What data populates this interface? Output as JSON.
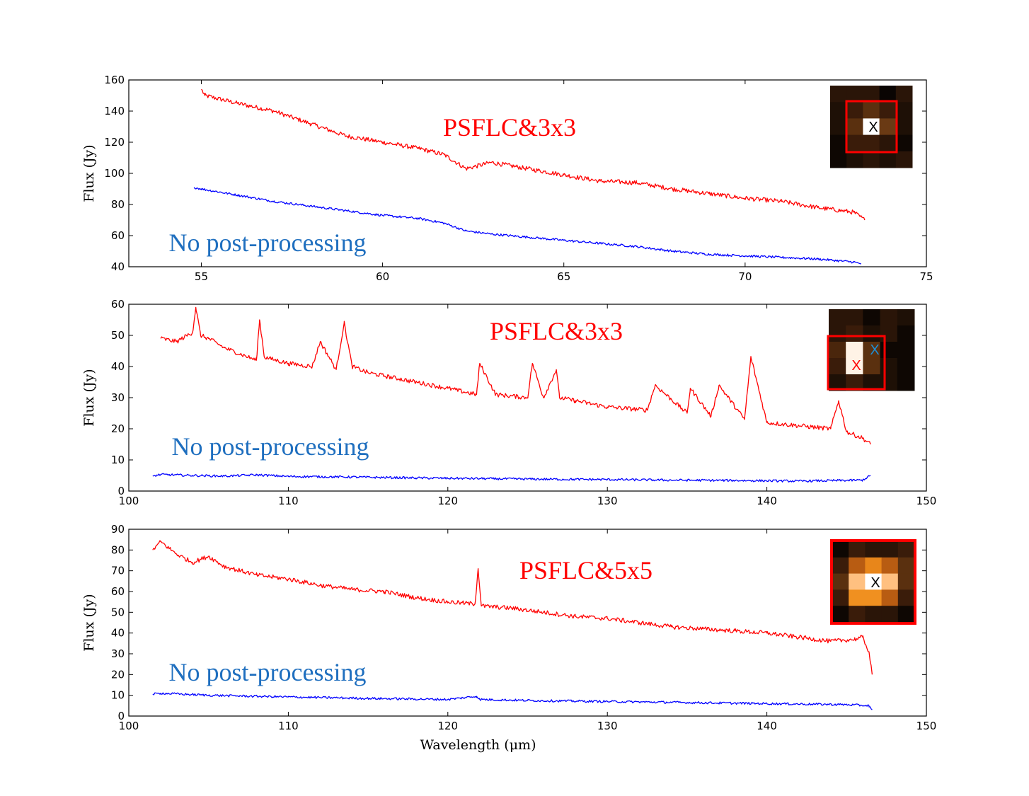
{
  "chart_data": [
    {
      "type": "line",
      "xlabel": "",
      "ylabel": "Flux (Jy)",
      "xlim": [
        53,
        75
      ],
      "ylim": [
        40,
        160
      ],
      "xticks": [
        "55",
        "60",
        "65",
        "70",
        "75"
      ],
      "yticks": [
        "40",
        "60",
        "80",
        "100",
        "120",
        "140",
        "160"
      ],
      "annotations": {
        "red": "PSFLC&3x3",
        "blue": "No post-processing"
      },
      "colors": {
        "red": "#ff0000",
        "blue": "#0000ff",
        "blue_text": "#1f6fbf"
      },
      "series": [
        {
          "color": "#ff0000",
          "x": [
            55.0,
            55.1,
            56,
            57,
            58,
            59,
            60,
            61,
            61.7,
            62.3,
            63,
            64,
            65,
            66,
            67,
            68,
            69,
            70,
            71,
            72,
            73,
            73.3
          ],
          "y": [
            154,
            150,
            145,
            140,
            132,
            124,
            120,
            116,
            112,
            103,
            107,
            103,
            99,
            95,
            94,
            90,
            87,
            84,
            82,
            78,
            75,
            70
          ]
        },
        {
          "color": "#0000ff",
          "x": [
            54.8,
            55,
            56,
            57,
            58,
            59,
            60,
            61,
            61.7,
            62.3,
            63,
            64,
            65,
            66,
            67,
            68,
            69,
            70,
            71,
            72,
            73,
            73.2
          ],
          "y": [
            91,
            90,
            86,
            82,
            79,
            76,
            73,
            71,
            68,
            63,
            61,
            59,
            57,
            55,
            53,
            50,
            48,
            47,
            46,
            45,
            43,
            42
          ]
        }
      ]
    },
    {
      "type": "line",
      "xlabel": "",
      "ylabel": "Flux (Jy)",
      "xlim": [
        100,
        150
      ],
      "ylim": [
        0,
        60
      ],
      "xticks": [
        "100",
        "110",
        "120",
        "130",
        "140",
        "150"
      ],
      "yticks": [
        "0",
        "10",
        "20",
        "30",
        "40",
        "50",
        "60"
      ],
      "annotations": {
        "red": "PSFLC&3x3",
        "blue": "No post-processing"
      },
      "colors": {
        "red": "#ff0000",
        "blue": "#0000ff",
        "blue_text": "#1f6fbf"
      },
      "series": [
        {
          "color": "#ff0000",
          "x": [
            102,
            103,
            104,
            104.2,
            104.5,
            105,
            106,
            107,
            108,
            108.2,
            108.5,
            110,
            111.5,
            112,
            113,
            113.5,
            114,
            115,
            116,
            117,
            118,
            120,
            121.8,
            122,
            123,
            125,
            125.3,
            126,
            126.8,
            127,
            128,
            130,
            132.5,
            133,
            135,
            135.2,
            136.5,
            137,
            138.6,
            139,
            140,
            142,
            144,
            144.5,
            145,
            146,
            146.5
          ],
          "y": [
            49,
            48,
            51,
            59,
            50,
            49,
            46,
            44,
            42,
            55,
            43,
            41,
            40,
            48,
            39,
            54,
            40,
            38,
            37,
            36,
            35,
            33,
            31,
            41,
            31,
            30,
            41,
            30,
            39,
            30,
            29,
            27,
            26,
            34,
            25,
            33,
            24,
            34,
            23,
            43,
            22,
            21,
            20,
            29,
            19,
            17,
            15
          ]
        },
        {
          "color": "#0000ff",
          "x": [
            101.5,
            102,
            104,
            106,
            108,
            110,
            114,
            118,
            122,
            126,
            130,
            134,
            138,
            142,
            146,
            146.5
          ],
          "y": [
            4.8,
            5.3,
            5.0,
            4.8,
            5.2,
            4.7,
            4.5,
            4.2,
            4.0,
            3.8,
            3.7,
            3.5,
            3.4,
            3.2,
            3.5,
            5.0
          ]
        }
      ]
    },
    {
      "type": "line",
      "xlabel": "Wavelength (μm)",
      "ylabel": "Flux (Jy)",
      "xlim": [
        100,
        150
      ],
      "ylim": [
        0,
        90
      ],
      "xticks": [
        "100",
        "110",
        "120",
        "130",
        "140",
        "150"
      ],
      "yticks": [
        "0",
        "10",
        "20",
        "30",
        "40",
        "50",
        "60",
        "70",
        "80",
        "90"
      ],
      "annotations": {
        "red": "PSFLC&5x5",
        "blue": "No post-processing"
      },
      "colors": {
        "red": "#ff0000",
        "blue": "#0000ff",
        "blue_text": "#1f6fbf"
      },
      "series": [
        {
          "color": "#ff0000",
          "x": [
            101.5,
            102,
            103,
            104,
            105,
            106,
            108,
            110,
            112,
            114,
            116,
            118,
            120,
            121.7,
            121.9,
            122.1,
            124,
            126,
            128,
            130,
            132,
            134,
            136,
            138,
            140,
            142,
            144,
            145.5,
            146,
            146.4,
            146.6
          ],
          "y": [
            80,
            84,
            78,
            74,
            77,
            72,
            68,
            66,
            63,
            61,
            60,
            57,
            55,
            54,
            71,
            53,
            52,
            50,
            48,
            47,
            45,
            43,
            42,
            41,
            40,
            38,
            36,
            37,
            38,
            31,
            20
          ]
        },
        {
          "color": "#0000ff",
          "x": [
            101.5,
            102,
            105,
            110,
            115,
            120,
            121.8,
            122,
            125,
            130,
            135,
            140,
            145,
            146.4,
            146.6
          ],
          "y": [
            10.5,
            11,
            10,
            9.2,
            8.5,
            8,
            9.5,
            8,
            7.5,
            7,
            6.5,
            6,
            5.5,
            5,
            3
          ]
        }
      ]
    }
  ]
}
